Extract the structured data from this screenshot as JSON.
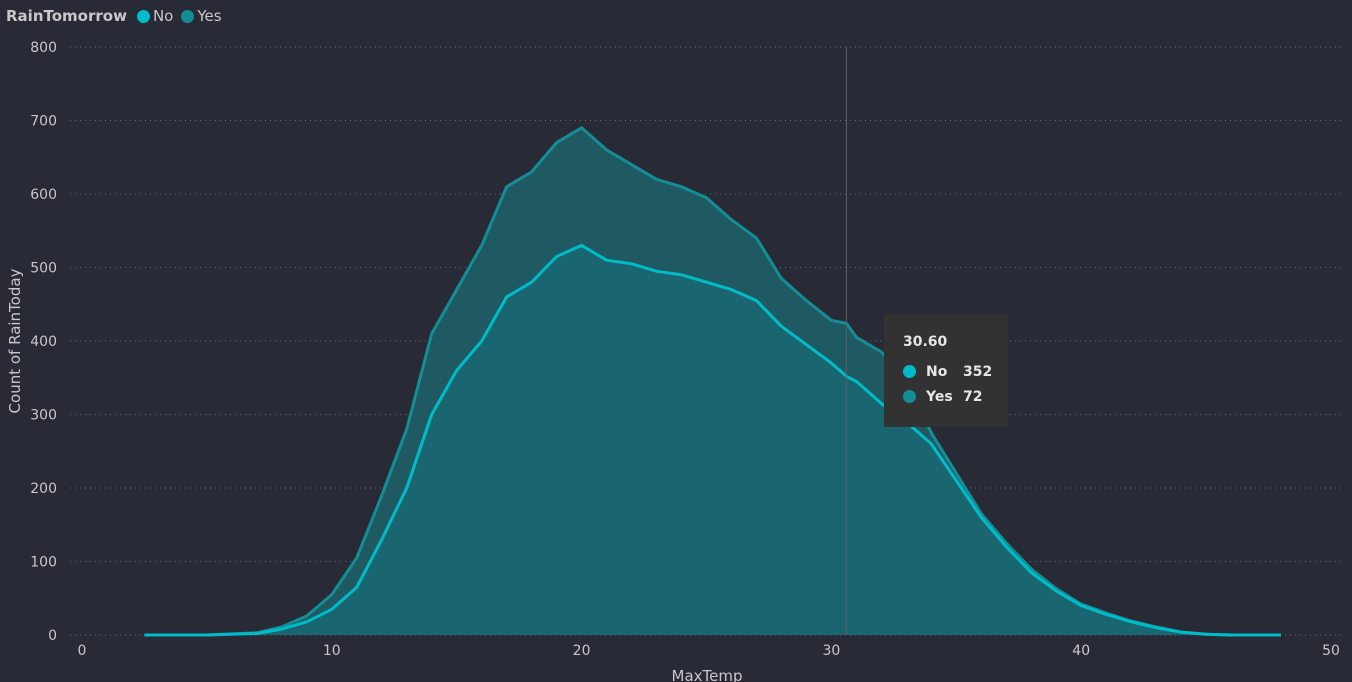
{
  "legend": {
    "title": "RainTomorrow",
    "items": [
      {
        "label": "No",
        "color": "#00bcc9"
      },
      {
        "label": "Yes",
        "color": "#138e96"
      }
    ]
  },
  "tooltip": {
    "title": "30.60",
    "rows": [
      {
        "label": "No",
        "value": "352",
        "color": "#00bcc9"
      },
      {
        "label": "Yes",
        "value": "72",
        "color": "#138e96"
      }
    ]
  },
  "chart_data": {
    "type": "area",
    "xlabel": "MaxTemp",
    "ylabel": "Count of RainToday",
    "xlim": [
      0,
      50
    ],
    "ylim": [
      0,
      800
    ],
    "xticks": [
      0,
      10,
      20,
      30,
      40,
      50
    ],
    "yticks": [
      0,
      100,
      200,
      300,
      400,
      500,
      600,
      700,
      800
    ],
    "grid": true,
    "legend_position": "top-left",
    "stacked": true,
    "hover_x": 30.6,
    "x": [
      2.5,
      5,
      7,
      8,
      9,
      10,
      11,
      12,
      13,
      14,
      15,
      16,
      17,
      18,
      19,
      20,
      21,
      22,
      23,
      24,
      25,
      26,
      27,
      28,
      29,
      30,
      30.6,
      31,
      32,
      33,
      34,
      35,
      36,
      37,
      38,
      39,
      40,
      41,
      42,
      43,
      44,
      45,
      46,
      48
    ],
    "series": [
      {
        "name": "No",
        "color": "#00bcc9",
        "values": [
          0,
          0,
          2,
          8,
          18,
          35,
          65,
          130,
          200,
          300,
          360,
          400,
          460,
          480,
          515,
          530,
          510,
          505,
          495,
          490,
          480,
          470,
          455,
          420,
          395,
          370,
          352,
          345,
          315,
          290,
          260,
          210,
          160,
          120,
          85,
          60,
          40,
          28,
          18,
          10,
          4,
          1,
          0,
          0
        ]
      },
      {
        "name": "Yes",
        "color": "#138e96",
        "values": [
          0,
          0,
          1,
          3,
          8,
          20,
          40,
          60,
          80,
          110,
          110,
          130,
          150,
          150,
          155,
          160,
          150,
          135,
          125,
          120,
          115,
          95,
          85,
          65,
          60,
          58,
          72,
          60,
          70,
          60,
          15,
          10,
          5,
          5,
          5,
          3,
          2,
          2,
          1,
          1,
          0,
          0,
          0,
          0
        ]
      }
    ]
  }
}
